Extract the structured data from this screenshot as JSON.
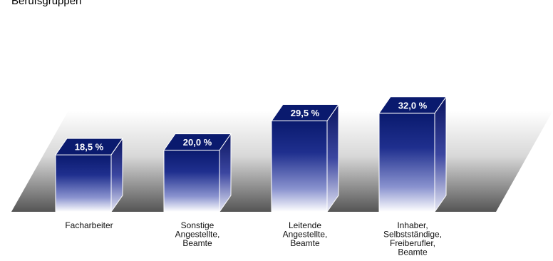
{
  "chart_data": {
    "type": "bar",
    "title": "Berufsgruppen",
    "categories": [
      [
        "Facharbeiter"
      ],
      [
        "Sonstige",
        "Angestellte,",
        "Beamte"
      ],
      [
        "Leitende",
        "Angestellte,",
        "Beamte"
      ],
      [
        "Inhaber,",
        "Selbstständige,",
        "Freiberufler,",
        "Beamte"
      ]
    ],
    "values": [
      18.5,
      20.0,
      29.5,
      32.0
    ],
    "value_labels": [
      "18,5 %",
      "20,0 %",
      "29,5 %",
      "32,0 %"
    ],
    "ylim": [
      0,
      35
    ],
    "grid": false,
    "legend": "none",
    "colors": {
      "bar_top": "#0a1a6e",
      "bar_mid": "#3a4aa8",
      "bar_bottom": "#ffffff",
      "bar_side": "#0b1560",
      "floor_dark": "#555555",
      "floor_light": "#ffffff"
    }
  }
}
